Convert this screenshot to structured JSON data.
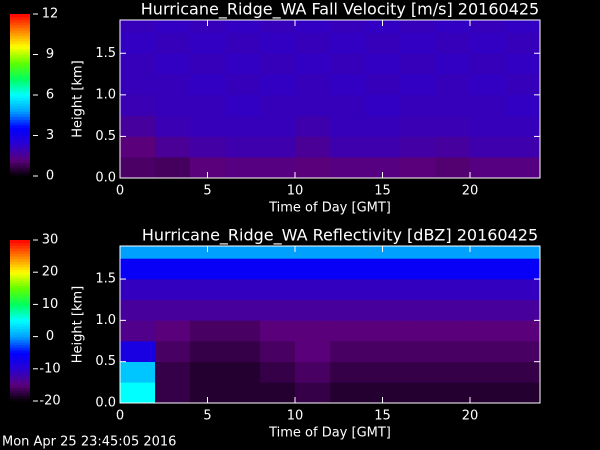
{
  "chart_data": [
    {
      "type": "heatmap",
      "title": "Hurricane_Ridge_WA Fall Velocity [m/s] 20160425",
      "x_label": "Time of Day [GMT]",
      "y_label": "Height [km]",
      "xlim": [
        0,
        24
      ],
      "xticks": [
        0,
        5,
        10,
        15,
        20
      ],
      "ylim": [
        0,
        1.9
      ],
      "yticks": [
        {
          "value": 0,
          "label": "0.0"
        },
        {
          "value": 0.5,
          "label": "0.5"
        },
        {
          "value": 1,
          "label": "1.0"
        },
        {
          "value": 1.5,
          "label": "1.5"
        }
      ],
      "x_bins": [
        0,
        2,
        4,
        6,
        8,
        10,
        12,
        14,
        16,
        18,
        20,
        22,
        24
      ],
      "y_bins": [
        0,
        0.25,
        0.5,
        0.75,
        1.0,
        1.25,
        1.5,
        1.75,
        1.9
      ],
      "z": [
        [
          1.0,
          0.9,
          1.2,
          1.3,
          1.3,
          1.2,
          1.3,
          1.3,
          1.2,
          1.1,
          1.3,
          1.3
        ],
        [
          1.2,
          1.6,
          1.8,
          1.9,
          1.9,
          1.6,
          1.9,
          1.9,
          1.8,
          1.7,
          1.9,
          1.9
        ],
        [
          1.7,
          2.0,
          2.1,
          2.1,
          2.1,
          1.9,
          2.1,
          2.1,
          2.0,
          2.0,
          2.1,
          2.1
        ],
        [
          2.0,
          2.1,
          2.1,
          2.2,
          2.1,
          2.1,
          2.1,
          2.2,
          2.1,
          2.1,
          2.1,
          2.2
        ],
        [
          2.1,
          2.1,
          2.2,
          2.1,
          2.2,
          2.1,
          2.2,
          2.1,
          2.2,
          2.1,
          2.2,
          2.1
        ],
        [
          2.1,
          2.2,
          2.1,
          2.2,
          2.1,
          2.2,
          2.1,
          2.2,
          2.1,
          2.2,
          2.1,
          2.2
        ],
        [
          2.2,
          2.1,
          2.2,
          2.1,
          2.2,
          2.1,
          2.2,
          2.1,
          2.2,
          2.1,
          2.2,
          2.1
        ],
        [
          2.1,
          2.2,
          2.1,
          2.2,
          2.1,
          2.2,
          2.1,
          2.2,
          2.1,
          2.2,
          2.1,
          2.2
        ]
      ],
      "colorbar_lim": [
        0,
        12
      ],
      "colorbar_ticks": [
        0,
        3,
        6,
        9,
        12
      ]
    },
    {
      "type": "heatmap",
      "title": "Hurricane_Ridge_WA Reflectivity [dBZ] 20160425",
      "x_label": "Time of Day [GMT]",
      "y_label": "Height [km]",
      "xlim": [
        0,
        24
      ],
      "xticks": [
        0,
        5,
        10,
        15,
        20
      ],
      "ylim": [
        0,
        1.9
      ],
      "yticks": [
        {
          "value": 0,
          "label": "0.0"
        },
        {
          "value": 0.5,
          "label": "0.5"
        },
        {
          "value": 1,
          "label": "1.0"
        },
        {
          "value": 1.5,
          "label": "1.5"
        }
      ],
      "x_bins": [
        0,
        2,
        4,
        6,
        8,
        10,
        12,
        14,
        16,
        18,
        20,
        22,
        24
      ],
      "y_bins": [
        0,
        0.25,
        0.5,
        0.75,
        1.0,
        1.25,
        1.5,
        1.75,
        1.9
      ],
      "z": [
        [
          5,
          -17,
          -18,
          -18,
          -18,
          -17,
          -18,
          -18,
          -18,
          -18,
          -18,
          -18
        ],
        [
          2,
          -17,
          -18,
          -18,
          -17,
          -16,
          -17,
          -17,
          -17,
          -17,
          -17,
          -17
        ],
        [
          -8,
          -16,
          -17,
          -17,
          -16,
          -15,
          -16,
          -16,
          -16,
          -16,
          -16,
          -16
        ],
        [
          -14,
          -15,
          -16,
          -16,
          -15,
          -15,
          -15,
          -15,
          -15,
          -15,
          -15,
          -15
        ],
        [
          -13,
          -13,
          -13,
          -13,
          -13,
          -13,
          -13,
          -13,
          -13,
          -13,
          -13,
          -13
        ],
        [
          -11,
          -11,
          -11,
          -11,
          -11,
          -11,
          -11,
          -11,
          -11,
          -11,
          -11,
          -11
        ],
        [
          -6,
          -6,
          -6,
          -6,
          -6,
          -6,
          -6,
          -6,
          -6,
          -6,
          -6,
          -6
        ],
        [
          0,
          0,
          0,
          0,
          0,
          0,
          0,
          0,
          0,
          0,
          0,
          0
        ]
      ],
      "colorbar_lim": [
        -20,
        30
      ],
      "colorbar_ticks": [
        -20,
        -10,
        0,
        10,
        20,
        30
      ]
    }
  ],
  "colormap": [
    "#000000",
    "#5a007a",
    "#2a00d0",
    "#0000ff",
    "#00a0ff",
    "#00ffff",
    "#00ff60",
    "#60ff00",
    "#ffff00",
    "#ff8000",
    "#ff0000"
  ],
  "footer": "Mon Apr 25 23:45:05 2016"
}
